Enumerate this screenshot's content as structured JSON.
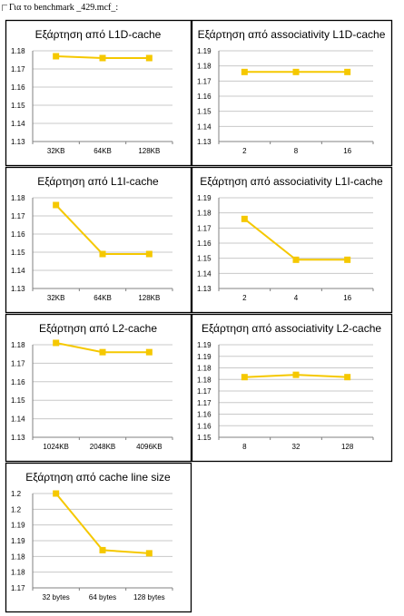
{
  "header": {
    "text": "Για το benchmark _429.mcf_:"
  },
  "colors": {
    "series": "#f5c800",
    "grid": "#c8c8c8",
    "axis": "#808080",
    "frame": "#000000"
  },
  "chart_data": [
    {
      "type": "line",
      "title": "Εξάρτηση από L1D-cache",
      "categories": [
        "32KB",
        "64KB",
        "128KB"
      ],
      "values": [
        1.177,
        1.176,
        1.176
      ],
      "ylim": [
        1.13,
        1.18
      ],
      "yticks": [
        "1.18",
        "1.17",
        "1.16",
        "1.15",
        "1.14",
        "1.13"
      ],
      "grid": true,
      "legend": false,
      "xlabel": "",
      "ylabel": ""
    },
    {
      "type": "line",
      "title": "Εξάρτηση από associativity L1D-cache",
      "categories": [
        "2",
        "8",
        "16"
      ],
      "values": [
        1.176,
        1.176,
        1.176
      ],
      "ylim": [
        1.13,
        1.19
      ],
      "yticks": [
        "1.19",
        "1.18",
        "1.17",
        "1.16",
        "1.15",
        "1.14",
        "1.13"
      ],
      "grid": true,
      "legend": false,
      "xlabel": "",
      "ylabel": ""
    },
    {
      "type": "line",
      "title": "Εξάρτηση από L1I-cache",
      "categories": [
        "32KB",
        "64KB",
        "128KB"
      ],
      "values": [
        1.176,
        1.149,
        1.149
      ],
      "ylim": [
        1.13,
        1.18
      ],
      "yticks": [
        "1.18",
        "1.17",
        "1.16",
        "1.15",
        "1.14",
        "1.13"
      ],
      "grid": true,
      "legend": false,
      "xlabel": "",
      "ylabel": ""
    },
    {
      "type": "line",
      "title": "Εξάρτηση από associativity L1I-cache",
      "categories": [
        "2",
        "4",
        "16"
      ],
      "values": [
        1.176,
        1.149,
        1.149
      ],
      "ylim": [
        1.13,
        1.19
      ],
      "yticks": [
        "1.19",
        "1.18",
        "1.17",
        "1.16",
        "1.15",
        "1.14",
        "1.13"
      ],
      "grid": true,
      "legend": false,
      "xlabel": "",
      "ylabel": ""
    },
    {
      "type": "line",
      "title": "Εξάρτηση από L2-cache",
      "categories": [
        "1024KB",
        "2048KB",
        "4096KB"
      ],
      "values": [
        1.181,
        1.176,
        1.176
      ],
      "ylim": [
        1.13,
        1.18
      ],
      "yticks": [
        "1.18",
        "1.17",
        "1.16",
        "1.15",
        "1.14",
        "1.13"
      ],
      "grid": true,
      "legend": false,
      "xlabel": "",
      "ylabel": ""
    },
    {
      "type": "line",
      "title": "Εξάρτηση από associativity L2-cache",
      "categories": [
        "8",
        "32",
        "128"
      ],
      "values": [
        1.176,
        1.177,
        1.176
      ],
      "ylim": [
        1.15,
        1.19
      ],
      "yticks": [
        "1.19",
        "1.19",
        "1.18",
        "1.18",
        "1.17",
        "1.17",
        "1.16",
        "1.16",
        "1.15"
      ],
      "grid": true,
      "legend": false,
      "xlabel": "",
      "ylabel": ""
    },
    {
      "type": "line",
      "title": "Εξάρτηση από cache line size",
      "categories": [
        "32 bytes",
        "64 bytes",
        "128 bytes"
      ],
      "values": [
        1.2,
        1.182,
        1.181
      ],
      "ylim": [
        1.17,
        1.2
      ],
      "yticks": [
        "1.2",
        "1.2",
        "1.19",
        "1.19",
        "1.18",
        "1.18",
        "1.17"
      ],
      "grid": true,
      "legend": false,
      "xlabel": "",
      "ylabel": ""
    }
  ]
}
